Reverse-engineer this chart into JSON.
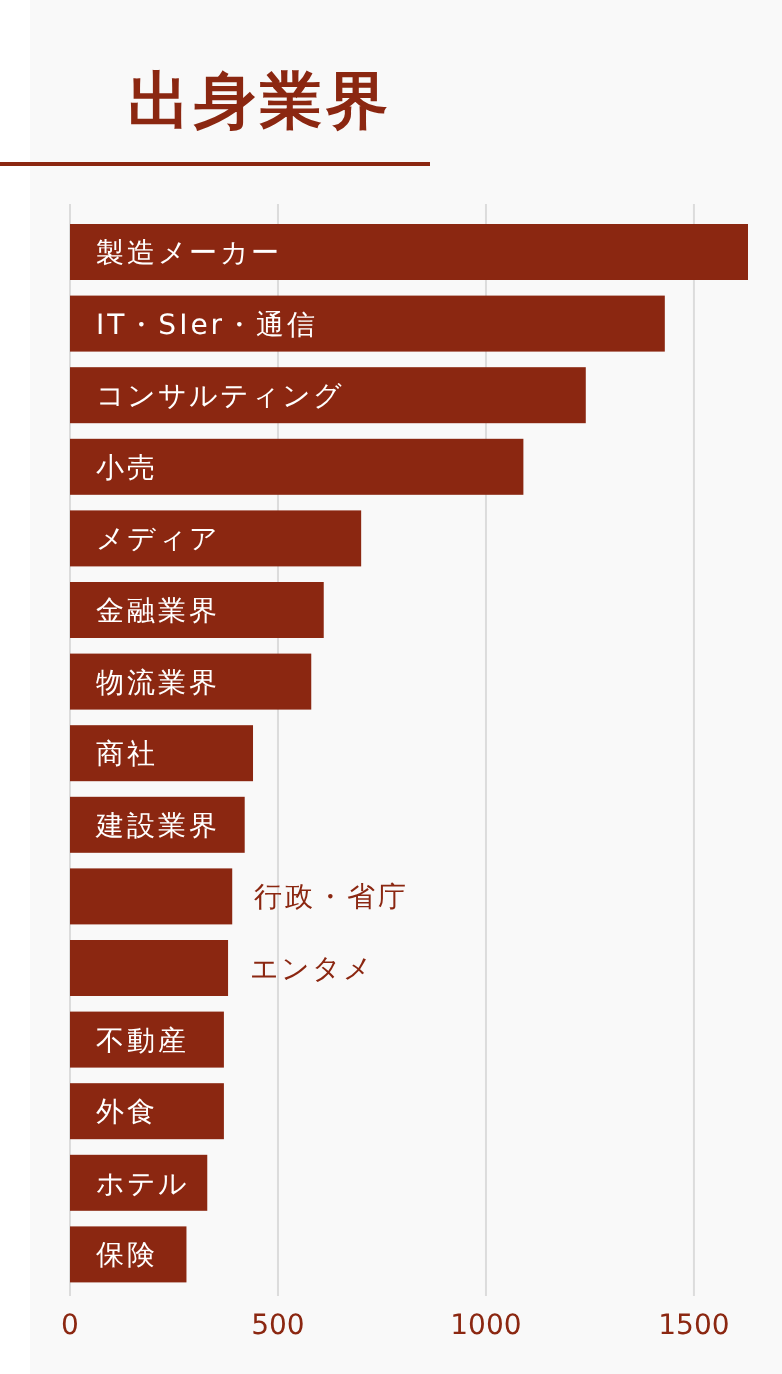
{
  "chart_data": {
    "type": "bar",
    "orientation": "horizontal",
    "title": "出身業界",
    "categories": [
      "製造メーカー",
      "IT・SIer・通信",
      "コンサルティング",
      "小売",
      "メディア",
      "金融業界",
      "物流業界",
      "商社",
      "建設業界",
      "行政・省庁",
      "エンタメ",
      "不動産",
      "外食",
      "ホテル",
      "保険"
    ],
    "values": [
      1630,
      1430,
      1240,
      1090,
      700,
      610,
      580,
      440,
      420,
      390,
      380,
      370,
      370,
      330,
      280
    ],
    "color": "#8b2711",
    "xlim": [
      0,
      1630
    ],
    "xticks": [
      0,
      500,
      1000,
      1500
    ],
    "grid": "x"
  }
}
